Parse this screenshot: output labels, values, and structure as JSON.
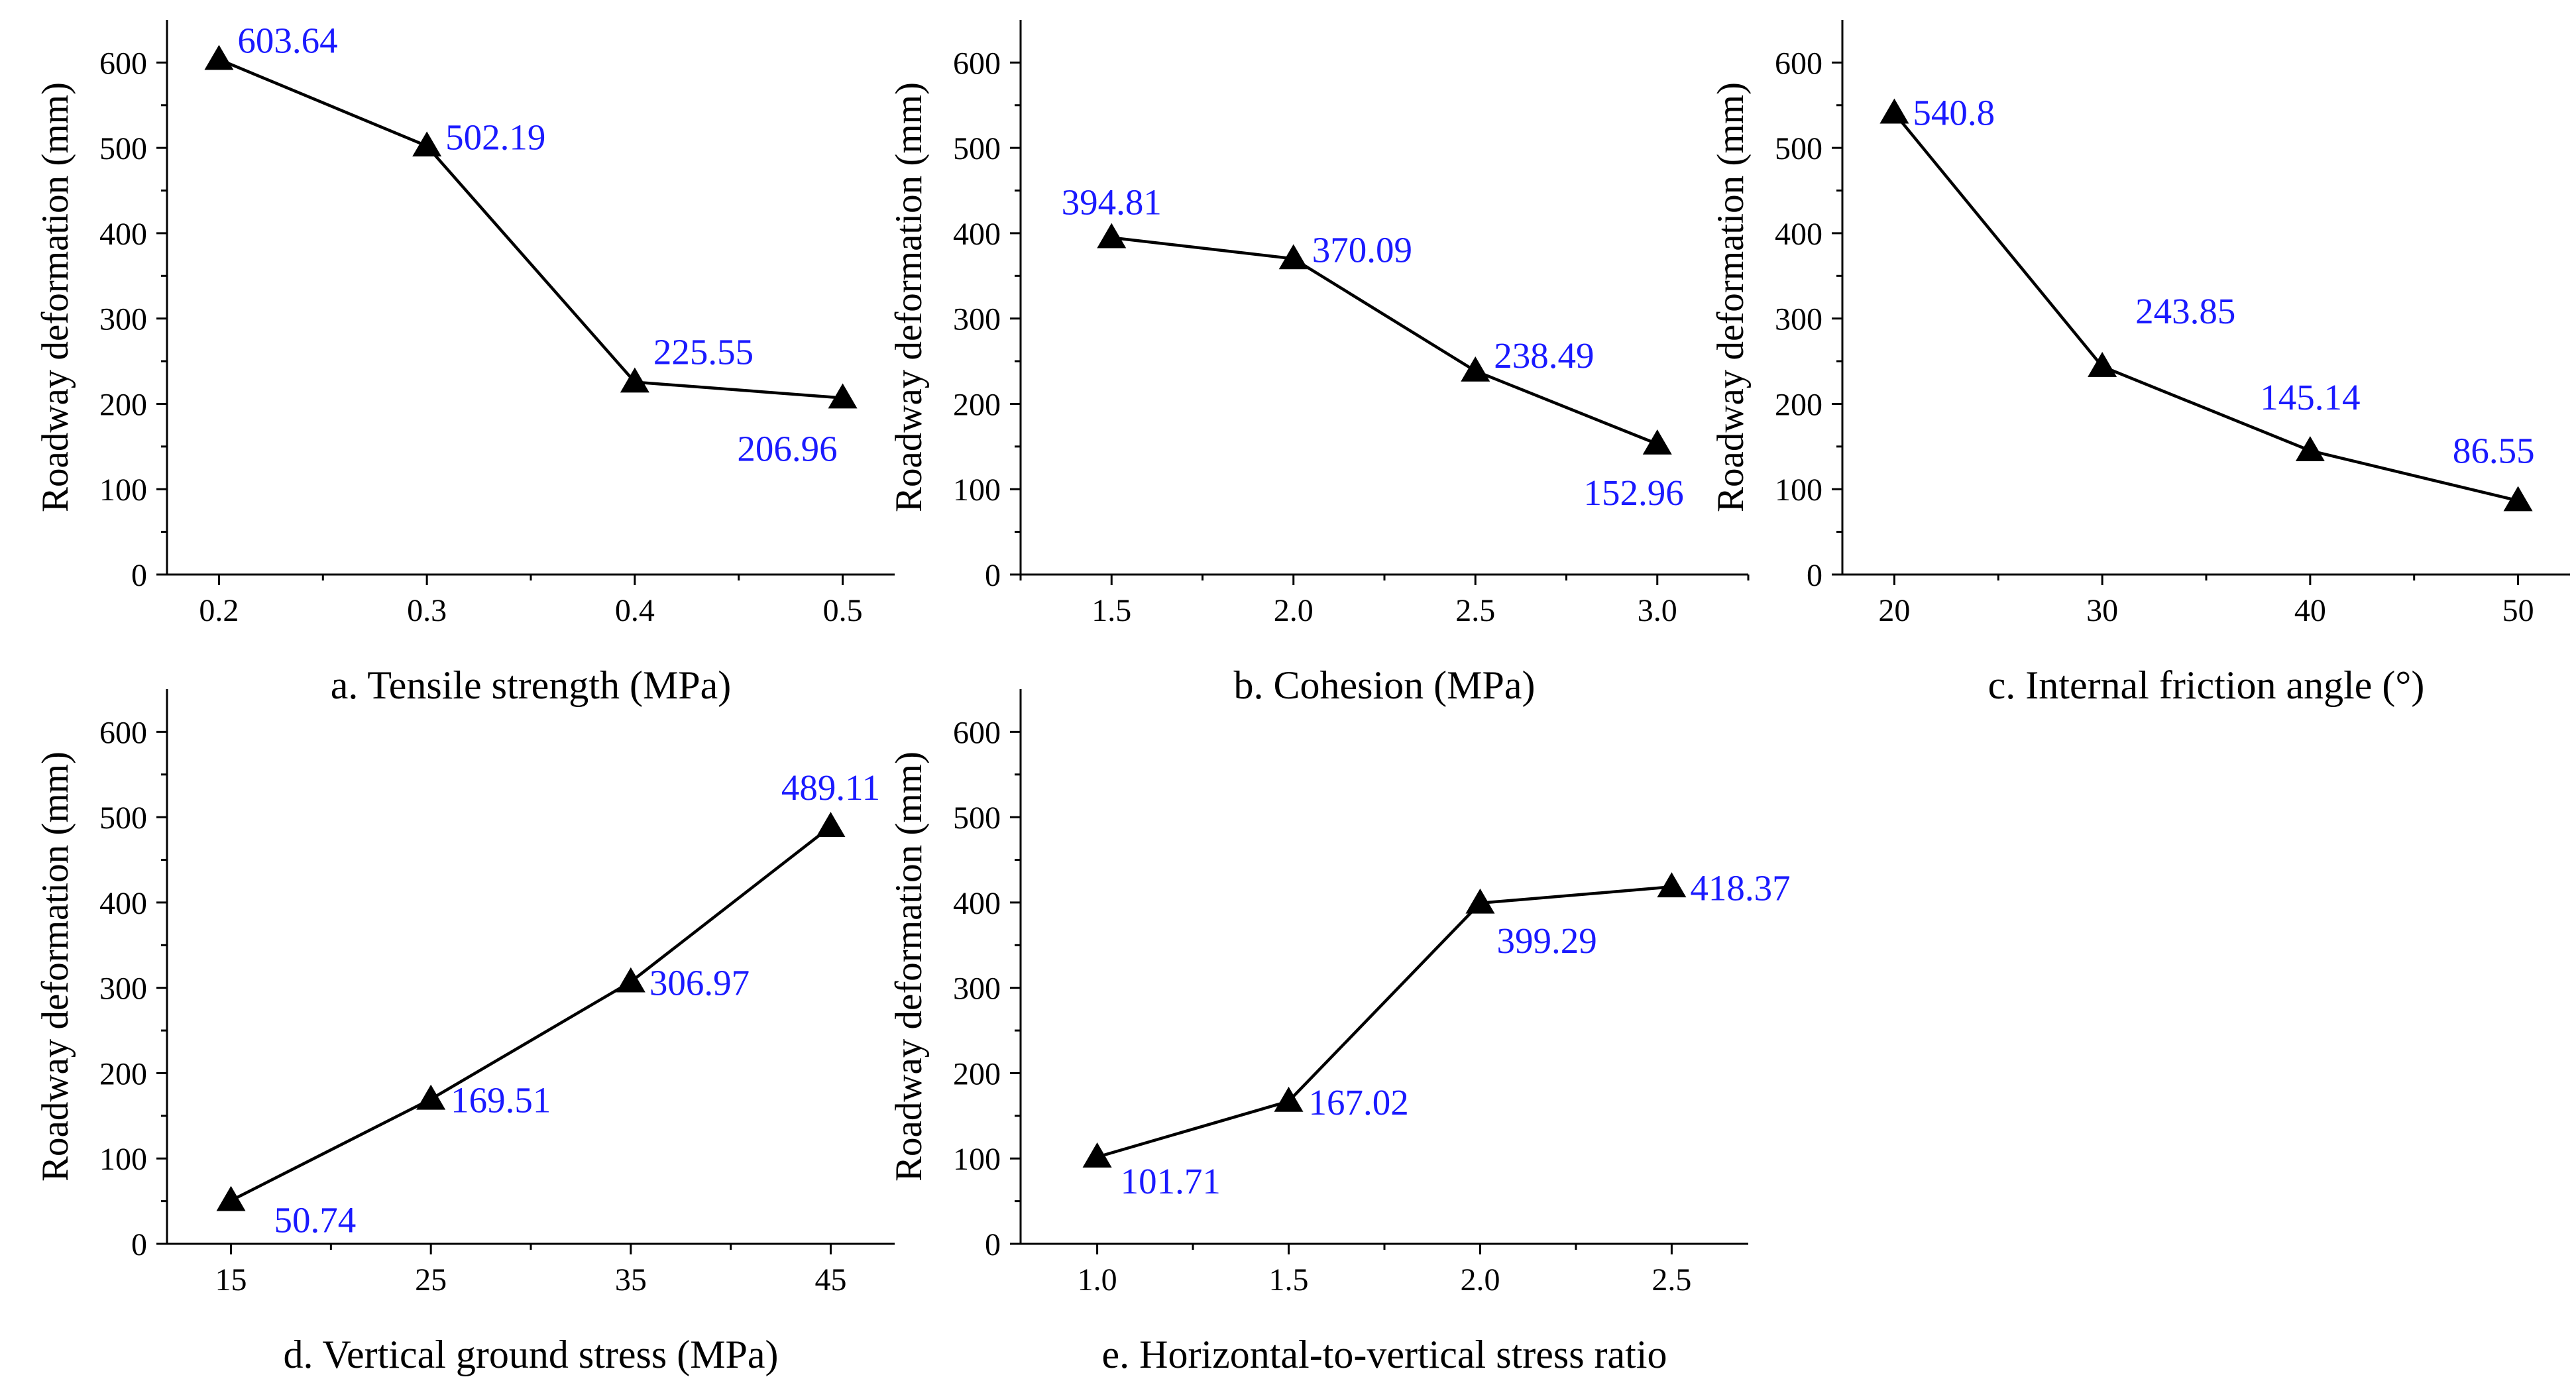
{
  "colors": {
    "axis": "#000000",
    "series": "#000000",
    "marker": "#000000",
    "data_label": "#1a1aff"
  },
  "chart_data": [
    {
      "type": "line",
      "caption": "a. Tensile strength (MPa)",
      "ylabel": "Roadway deformation (mm)",
      "x": [
        0.2,
        0.3,
        0.4,
        0.5
      ],
      "values": [
        603.64,
        502.19,
        225.55,
        206.96
      ],
      "data_labels": [
        "603.64",
        "502.19",
        "225.55",
        "206.96"
      ],
      "xticks": [
        "0.2",
        "0.3",
        "0.4",
        "0.5"
      ],
      "xlim": [
        0.175,
        0.525
      ],
      "yticks": [
        "0",
        "100",
        "200",
        "300",
        "400",
        "500",
        "600"
      ],
      "ylim": [
        0,
        650
      ],
      "marker": "triangle-up",
      "legend": "none",
      "grid": false
    },
    {
      "type": "line",
      "caption": "b. Cohesion (MPa)",
      "ylabel": "Roadway deformation (mm)",
      "x": [
        1.5,
        2.0,
        2.5,
        3.0
      ],
      "values": [
        394.81,
        370.09,
        238.49,
        152.96
      ],
      "data_labels": [
        "394.81",
        "370.09",
        "238.49",
        "152.96"
      ],
      "xticks": [
        "1.5",
        "2.0",
        "2.5",
        "3.0"
      ],
      "xlim": [
        1.25,
        3.25
      ],
      "yticks": [
        "0",
        "100",
        "200",
        "300",
        "400",
        "500",
        "600"
      ],
      "ylim": [
        0,
        650
      ],
      "marker": "triangle-up",
      "legend": "none",
      "grid": false
    },
    {
      "type": "line",
      "caption": "c. Internal friction angle (°)",
      "ylabel": "Roadway deformation (mm)",
      "x": [
        20,
        30,
        40,
        50
      ],
      "values": [
        540.8,
        243.85,
        145.14,
        86.55
      ],
      "data_labels": [
        "540.8",
        "243.85",
        "145.14",
        "86.55"
      ],
      "xticks": [
        "20",
        "30",
        "40",
        "50"
      ],
      "xlim": [
        17.5,
        52.5
      ],
      "yticks": [
        "0",
        "100",
        "200",
        "300",
        "400",
        "500",
        "600"
      ],
      "ylim": [
        0,
        650
      ],
      "marker": "triangle-up",
      "legend": "none",
      "grid": false
    },
    {
      "type": "line",
      "caption": "d. Vertical ground stress (MPa)",
      "ylabel": "Roadway deformation (mm)",
      "x": [
        15,
        25,
        35,
        45
      ],
      "values": [
        50.74,
        169.51,
        306.97,
        489.11
      ],
      "data_labels": [
        "50.74",
        "169.51",
        "306.97",
        "489.11"
      ],
      "xticks": [
        "15",
        "25",
        "35",
        "45"
      ],
      "xlim": [
        11.8,
        48.2
      ],
      "yticks": [
        "0",
        "100",
        "200",
        "300",
        "400",
        "500",
        "600"
      ],
      "ylim": [
        0,
        650
      ],
      "marker": "triangle-up",
      "legend": "none",
      "grid": false
    },
    {
      "type": "line",
      "caption": "e. Horizontal-to-vertical stress ratio",
      "ylabel": "Roadway deformation (mm)",
      "x": [
        1.0,
        1.5,
        2.0,
        2.5
      ],
      "values": [
        101.71,
        167.02,
        399.29,
        418.37
      ],
      "data_labels": [
        "101.71",
        "167.02",
        "399.29",
        "418.37"
      ],
      "xticks": [
        "1.0",
        "1.5",
        "2.0",
        "2.5"
      ],
      "xlim": [
        0.8,
        2.7
      ],
      "yticks": [
        "0",
        "100",
        "200",
        "300",
        "400",
        "500",
        "600"
      ],
      "ylim": [
        0,
        650
      ],
      "marker": "triangle-up",
      "legend": "none",
      "grid": false
    }
  ]
}
